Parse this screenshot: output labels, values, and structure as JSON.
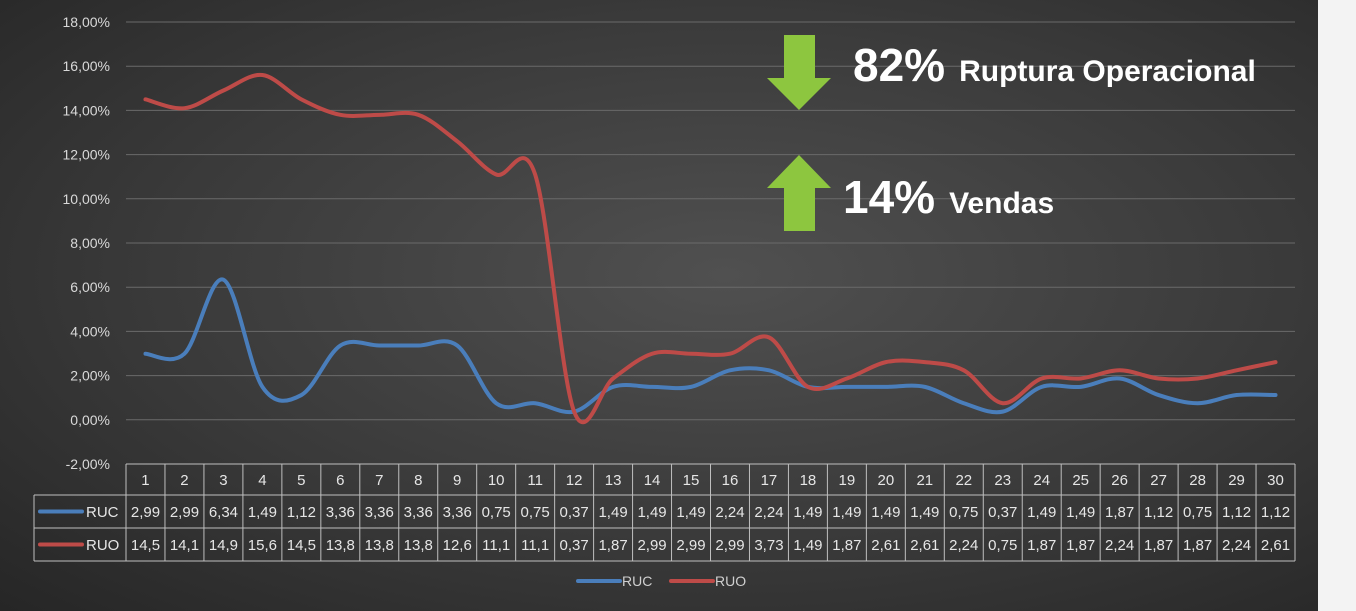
{
  "annotations": {
    "top": {
      "value": "82%",
      "label": "Ruptura Operacional",
      "arrow": "arrow-down-icon",
      "color": "#8dc63f"
    },
    "bottom": {
      "value": "14%",
      "label": "Vendas",
      "arrow": "arrow-up-icon",
      "color": "#8dc63f"
    }
  },
  "chart_data": {
    "type": "line",
    "x": [
      "1",
      "2",
      "3",
      "4",
      "5",
      "6",
      "7",
      "8",
      "9",
      "10",
      "11",
      "12",
      "13",
      "14",
      "15",
      "16",
      "17",
      "18",
      "19",
      "20",
      "21",
      "22",
      "23",
      "24",
      "25",
      "26",
      "27",
      "28",
      "29",
      "30"
    ],
    "ylim": [
      -2,
      18
    ],
    "yticks": [
      "-2,00%",
      "0,00%",
      "2,00%",
      "4,00%",
      "6,00%",
      "8,00%",
      "10,00%",
      "12,00%",
      "14,00%",
      "16,00%",
      "18,00%"
    ],
    "grid": true,
    "legend": "bottom",
    "data_table": true,
    "series": [
      {
        "name": "RUC",
        "color": "#4a7ebb",
        "values": [
          2.99,
          2.99,
          6.34,
          1.49,
          1.12,
          3.36,
          3.36,
          3.36,
          3.36,
          0.75,
          0.75,
          0.37,
          1.49,
          1.49,
          1.49,
          2.24,
          2.24,
          1.49,
          1.49,
          1.49,
          1.49,
          0.75,
          0.37,
          1.49,
          1.49,
          1.87,
          1.12,
          0.75,
          1.12,
          1.12
        ],
        "labels": [
          "2,99",
          "2,99",
          "6,34",
          "1,49",
          "1,12",
          "3,36",
          "3,36",
          "3,36",
          "3,36",
          "0,75",
          "0,75",
          "0,37",
          "1,49",
          "1,49",
          "1,49",
          "2,24",
          "2,24",
          "1,49",
          "1,49",
          "1,49",
          "1,49",
          "0,75",
          "0,37",
          "1,49",
          "1,49",
          "1,87",
          "1,12",
          "0,75",
          "1,12",
          "1,12"
        ]
      },
      {
        "name": "RUO",
        "color": "#be4b48",
        "values": [
          14.5,
          14.1,
          14.9,
          15.6,
          14.5,
          13.8,
          13.8,
          13.8,
          12.6,
          11.1,
          11.1,
          0.37,
          1.87,
          2.99,
          2.99,
          2.99,
          3.73,
          1.49,
          1.87,
          2.61,
          2.61,
          2.24,
          0.75,
          1.87,
          1.87,
          2.24,
          1.87,
          1.87,
          2.24,
          2.61
        ],
        "labels": [
          "14,5",
          "14,1",
          "14,9",
          "15,6",
          "14,5",
          "13,8",
          "13,8",
          "13,8",
          "12,6",
          "11,1",
          "11,1",
          "0,37",
          "1,87",
          "2,99",
          "2,99",
          "2,99",
          "3,73",
          "1,49",
          "1,87",
          "2,61",
          "2,61",
          "2,24",
          "0,75",
          "1,87",
          "1,87",
          "2,24",
          "1,87",
          "1,87",
          "2,24",
          "2,61"
        ]
      }
    ]
  }
}
